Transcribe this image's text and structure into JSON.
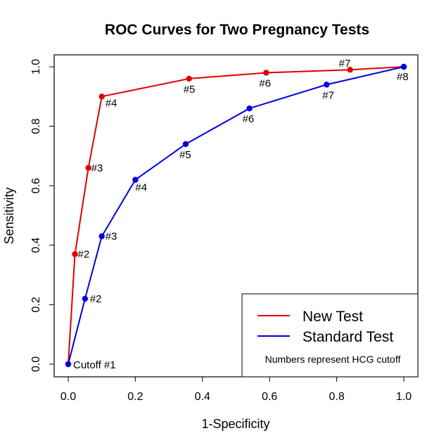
{
  "chart_data": {
    "type": "line",
    "title": "ROC Curves for Two Pregnancy Tests",
    "xlabel": "1-Specificity",
    "ylabel": "Sensitivity",
    "xlim": [
      0,
      1
    ],
    "ylim": [
      0,
      1
    ],
    "xticks": [
      "0.0",
      "0.2",
      "0.4",
      "0.6",
      "0.8",
      "1.0"
    ],
    "yticks": [
      "0.0",
      "0.2",
      "0.4",
      "0.6",
      "0.8",
      "1.0"
    ],
    "grid": false,
    "legend_position": "bottom-right",
    "legend_note": "Numbers represent HCG cutoff",
    "series": [
      {
        "name": "New Test",
        "color": "#e00000",
        "x": [
          0.0,
          0.02,
          0.06,
          0.1,
          0.36,
          0.59,
          0.84,
          1.0
        ],
        "y": [
          0.0,
          0.37,
          0.66,
          0.9,
          0.96,
          0.98,
          0.99,
          1.0
        ],
        "labels": [
          "",
          "#2",
          "#3",
          "#4",
          "#5",
          "#6",
          "#7",
          ""
        ]
      },
      {
        "name": "Standard Test",
        "color": "#0000e0",
        "x": [
          0.0,
          0.05,
          0.1,
          0.2,
          0.35,
          0.54,
          0.77,
          1.0
        ],
        "y": [
          0.0,
          0.22,
          0.43,
          0.62,
          0.74,
          0.86,
          0.94,
          1.0
        ],
        "labels": [
          "Cutoff #1",
          "#2",
          "#3",
          "#4",
          "#5",
          "#6",
          "#7",
          "#8"
        ]
      }
    ]
  }
}
